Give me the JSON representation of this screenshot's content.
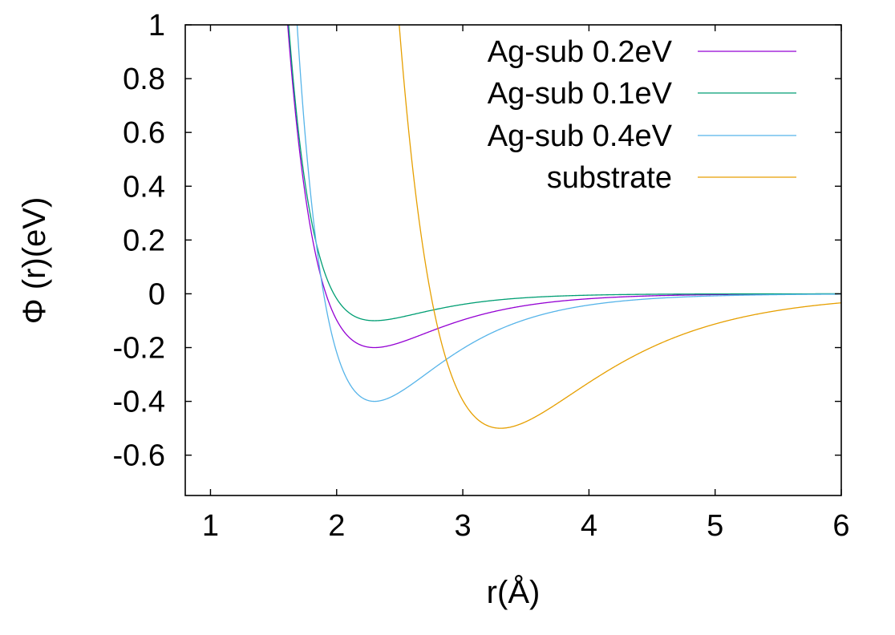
{
  "chart_data": {
    "type": "line",
    "title": "",
    "xlabel": "r(Å)",
    "ylabel": "Φ (r)(eV)",
    "xlim": [
      0.8,
      6
    ],
    "ylim": [
      -0.75,
      1
    ],
    "xticks": [
      1,
      2,
      3,
      4,
      5,
      6
    ],
    "yticks": [
      1,
      0.8,
      0.6,
      0.4,
      0.2,
      0,
      -0.2,
      -0.4,
      -0.6
    ],
    "xtick_labels": [
      "1",
      "2",
      "3",
      "4",
      "5",
      "6"
    ],
    "ytick_labels": [
      "1",
      "0.8",
      "0.6",
      "0.4",
      "0.2",
      "0",
      "-0.2",
      "-0.4",
      "-0.6"
    ],
    "grid": false,
    "legend_position": "top-right",
    "series": [
      {
        "name": "Ag-sub 0.2eV",
        "color": "#9400d3",
        "model": "morse",
        "depth": 0.2,
        "r0": 2.3,
        "alpha": 1.8,
        "description": "minimum -0.2 at r=2.3"
      },
      {
        "name": "Ag-sub 0.1eV",
        "color": "#009e73",
        "model": "morse",
        "depth": 0.1,
        "r0": 2.3,
        "alpha": 2.15,
        "description": "minimum -0.1 at r=2.3"
      },
      {
        "name": "Ag-sub 0.4eV",
        "color": "#56b4e9",
        "model": "morse",
        "depth": 0.4,
        "r0": 2.3,
        "alpha": 1.72,
        "description": "minimum -0.4 at r=2.3"
      },
      {
        "name": "substrate",
        "color": "#e69f00",
        "model": "morse",
        "depth": 0.5,
        "r0": 3.3,
        "alpha": 1.25,
        "description": "minimum -0.5 at r=3.3"
      }
    ]
  }
}
